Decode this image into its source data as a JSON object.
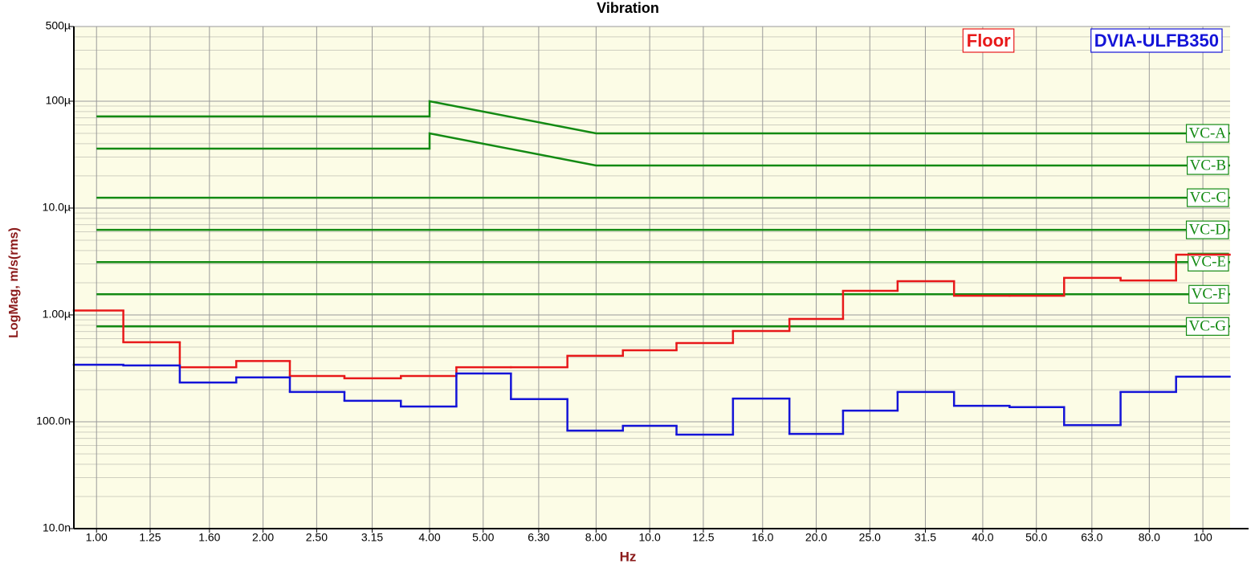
{
  "chart_data": {
    "type": "step",
    "title": "Vibration",
    "x_label": "Hz",
    "y_label": "LogMag, m/s(rms)",
    "x_scale": "log",
    "y_scale": "log",
    "grid": true,
    "legend": "upper right",
    "background": "#fcfce6",
    "xlim": [
      0.91,
      112
    ],
    "ylim": [
      1e-08,
      0.0005
    ],
    "xticks": [
      {
        "value": 1,
        "label": "1.00"
      },
      1.25,
      {
        "value": 1.6,
        "label": "1.60"
      },
      {
        "value": 2,
        "label": "2.00"
      },
      {
        "value": 2.5,
        "label": "2.50"
      },
      3.15,
      {
        "value": 4,
        "label": "4.00"
      },
      {
        "value": 5,
        "label": "5.00"
      },
      {
        "value": 6.3,
        "label": "6.30"
      },
      {
        "value": 8,
        "label": "8.00"
      },
      {
        "value": 10,
        "label": "10.0"
      },
      12.5,
      {
        "value": 16,
        "label": "16.0"
      },
      {
        "value": 20,
        "label": "20.0"
      },
      {
        "value": 25,
        "label": "25.0"
      },
      31.5,
      {
        "value": 40,
        "label": "40.0"
      },
      {
        "value": 50,
        "label": "50.0"
      },
      {
        "value": 63,
        "label": "63.0"
      },
      {
        "value": 80,
        "label": "80.0"
      },
      100
    ],
    "yticks": [
      {
        "value": 0.0005,
        "label": "500µ"
      },
      {
        "value": 0.0001,
        "label": "100µ"
      },
      {
        "value": 1e-05,
        "label": "10.0µ"
      },
      {
        "value": 1e-06,
        "label": "1.00µ"
      },
      {
        "value": 1e-07,
        "label": "100.0n"
      },
      {
        "value": 1e-08,
        "label": "10.0n"
      }
    ],
    "y_minor_ticks": [
      2e-08,
      3e-08,
      4e-08,
      5e-08,
      6e-08,
      7e-08,
      8e-08,
      9e-08,
      2e-07,
      3e-07,
      4e-07,
      5e-07,
      6e-07,
      7e-07,
      8e-07,
      9e-07,
      2e-06,
      3e-06,
      4e-06,
      5e-06,
      6e-06,
      7e-06,
      8e-06,
      9e-06,
      2e-05,
      3e-05,
      4e-05,
      5e-05,
      6e-05,
      7e-05,
      8e-05,
      9e-05,
      0.0002,
      0.0003,
      0.0004
    ],
    "x": [
      1,
      1.25,
      1.6,
      2,
      2.5,
      3.15,
      4,
      5,
      6.3,
      8,
      10,
      12.5,
      16,
      20,
      25,
      31.5,
      40,
      50,
      63,
      80,
      100
    ],
    "series": [
      {
        "name": "Floor",
        "color": "#e8191a",
        "values": [
          1.1e-06,
          5.55e-07,
          3.24e-07,
          3.7e-07,
          2.68e-07,
          2.55e-07,
          2.68e-07,
          3.24e-07,
          3.24e-07,
          4.14e-07,
          4.67e-07,
          5.46e-07,
          7.07e-07,
          9.17e-07,
          1.68e-06,
          2.07e-06,
          1.51e-06,
          1.51e-06,
          2.22e-06,
          2.1e-06,
          3.66e-06
        ]
      },
      {
        "name": "DVIA-ULFB350",
        "color": "#1414d8",
        "values": [
          3.42e-07,
          3.37e-07,
          2.33e-07,
          2.6e-07,
          1.9e-07,
          1.57e-07,
          1.39e-07,
          2.83e-07,
          1.63e-07,
          8.26e-08,
          9.17e-08,
          7.58e-08,
          1.65e-07,
          7.7e-08,
          1.27e-07,
          1.9e-07,
          1.41e-07,
          1.37e-07,
          9.3e-08,
          1.9e-07,
          2.64e-07
        ]
      }
    ],
    "criteria": [
      {
        "name": "VC-A",
        "color": "#138a13",
        "x": [
          1,
          4,
          4,
          8,
          112
        ],
        "values": [
          7.2e-05,
          7.2e-05,
          0.0001,
          5e-05,
          5e-05
        ]
      },
      {
        "name": "VC-B",
        "color": "#138a13",
        "x": [
          1,
          4,
          4,
          8,
          112
        ],
        "values": [
          3.6e-05,
          3.6e-05,
          5e-05,
          2.5e-05,
          2.5e-05
        ]
      },
      {
        "name": "VC-C",
        "color": "#138a13",
        "x": [
          1,
          112
        ],
        "values": [
          1.25e-05,
          1.25e-05
        ]
      },
      {
        "name": "VC-D",
        "color": "#138a13",
        "x": [
          1,
          112
        ],
        "values": [
          6.25e-06,
          6.25e-06
        ]
      },
      {
        "name": "VC-E",
        "color": "#138a13",
        "x": [
          1,
          112
        ],
        "values": [
          3.12e-06,
          3.12e-06
        ]
      },
      {
        "name": "VC-F",
        "color": "#138a13",
        "x": [
          1,
          112
        ],
        "values": [
          1.56e-06,
          1.56e-06
        ]
      },
      {
        "name": "VC-G",
        "color": "#138a13",
        "x": [
          1,
          112
        ],
        "values": [
          7.8e-07,
          7.8e-07
        ]
      }
    ]
  }
}
